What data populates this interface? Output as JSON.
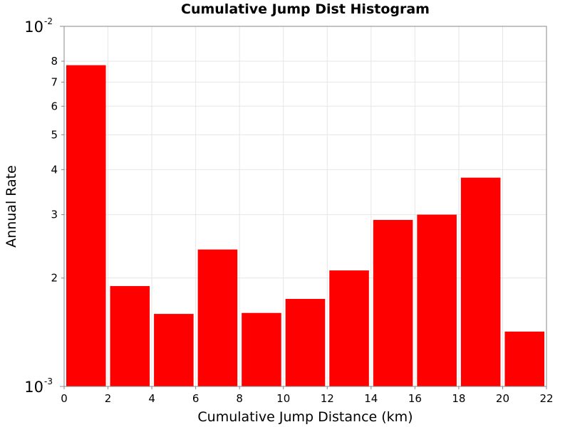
{
  "chart_data": {
    "type": "bar",
    "title": "Cumulative Jump Dist Histogram",
    "xlabel": "Cumulative Jump Distance (km)",
    "ylabel": "Annual Rate",
    "y_scale": "log",
    "ylim": [
      0.001,
      0.01
    ],
    "xlim": [
      0,
      22
    ],
    "grid": true,
    "bar_color": "#ff0000",
    "bins": [
      {
        "x_start": 0,
        "x_end": 2,
        "value": 0.0078
      },
      {
        "x_start": 2,
        "x_end": 4,
        "value": 0.0019
      },
      {
        "x_start": 4,
        "x_end": 6,
        "value": 0.00159
      },
      {
        "x_start": 6,
        "x_end": 8,
        "value": 0.0024
      },
      {
        "x_start": 8,
        "x_end": 10,
        "value": 0.0016
      },
      {
        "x_start": 10,
        "x_end": 12,
        "value": 0.00175
      },
      {
        "x_start": 12,
        "x_end": 14,
        "value": 0.0021
      },
      {
        "x_start": 14,
        "x_end": 16,
        "value": 0.0029
      },
      {
        "x_start": 16,
        "x_end": 18,
        "value": 0.003
      },
      {
        "x_start": 18,
        "x_end": 20,
        "value": 0.0038
      },
      {
        "x_start": 20,
        "x_end": 22,
        "value": 0.00142
      }
    ],
    "x_ticks": [
      "0",
      "2",
      "4",
      "6",
      "8",
      "10",
      "12",
      "14",
      "16",
      "18",
      "20",
      "22"
    ],
    "y_ticks_minor": [
      "2",
      "3",
      "4",
      "5",
      "6",
      "7",
      "8"
    ],
    "y_ticks_major": [
      {
        "base": "10",
        "exp": "-3"
      },
      {
        "base": "10",
        "exp": "-2"
      }
    ]
  }
}
